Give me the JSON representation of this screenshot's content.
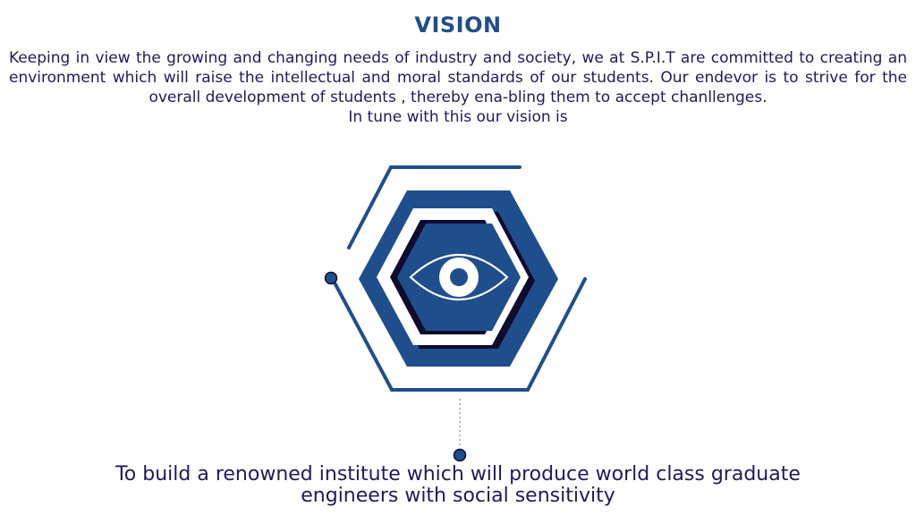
{
  "heading": "VISION",
  "intro": {
    "paragraph": "Keeping in view the growing and changing needs of industry and society, we at S.P.I.T are committed to creating an environment which will raise the intellectual and moral standards of our students. Our endevor is to strive for the overall development of students , thereby ena-bling them to accept chanllenges.",
    "lead_in": "In tune with this our vision is"
  },
  "graphic": {
    "icon": "eye-icon",
    "colors": {
      "blue": "#1f4e8c",
      "dark": "#0e0b2e",
      "white": "#ffffff"
    }
  },
  "vision_statement": "To build a renowned institute which will produce world class graduate engineers with social sensitivity"
}
